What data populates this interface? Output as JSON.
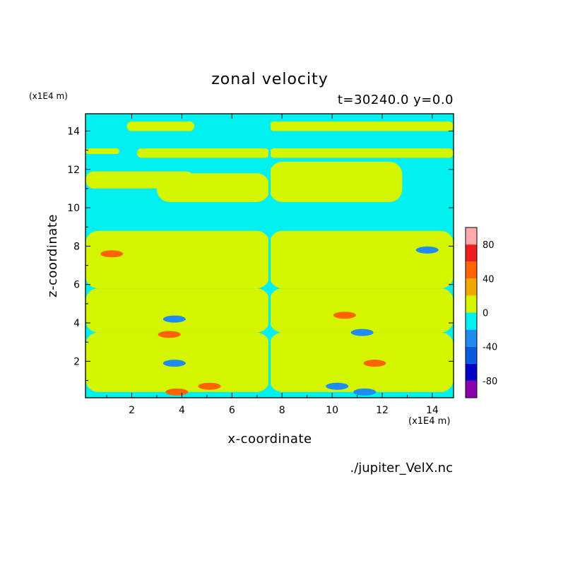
{
  "chart_data": {
    "type": "heatmap",
    "title": "zonal velocity",
    "subtitle": "t=30240.0 y=0.0",
    "xlabel": "x-coordinate",
    "ylabel": "z-coordinate",
    "x_unit": "(x1E4 m)",
    "y_unit": "(x1E4 m)",
    "xlim": [
      0.15,
      14.85
    ],
    "ylim": [
      0.1,
      14.9
    ],
    "xticks": [
      2,
      4,
      6,
      8,
      10,
      12,
      14
    ],
    "yticks": [
      2,
      4,
      6,
      8,
      10,
      12,
      14
    ],
    "colorbar": {
      "levels": [
        -100,
        -80,
        -60,
        -40,
        -20,
        0,
        20,
        40,
        60,
        80,
        100
      ],
      "colors": [
        "#8c00b0",
        "#0000c8",
        "#0a5ae0",
        "#1e8cf0",
        "#00f0f0",
        "#d4f500",
        "#f0a800",
        "#ff6400",
        "#f01e1e",
        "#ffaaaa"
      ],
      "tick_labels": [
        "-80",
        "-40",
        "0",
        "40",
        "80"
      ],
      "tick_values": [
        -80,
        -40,
        0,
        40,
        80
      ]
    },
    "background_band": "#00f0f0",
    "zero_plus_band": "#d4f500",
    "symmetry_axis_x": 7.5,
    "positive_regions": [
      {
        "x": [
          1.8,
          4.5
        ],
        "z": [
          14.0,
          14.5
        ]
      },
      {
        "x": [
          0.15,
          1.5
        ],
        "z": [
          12.8,
          13.1
        ]
      },
      {
        "x": [
          2.2,
          7.5
        ],
        "z": [
          12.6,
          13.1
        ]
      },
      {
        "x": [
          0.15,
          4.5
        ],
        "z": [
          11.0,
          11.9
        ]
      },
      {
        "x": [
          3.0,
          7.5
        ],
        "z": [
          10.3,
          11.8
        ]
      },
      {
        "x": [
          0.15,
          7.5
        ],
        "z": [
          5.8,
          8.8
        ]
      },
      {
        "x": [
          0.15,
          7.5
        ],
        "z": [
          3.5,
          5.8
        ]
      },
      {
        "x": [
          0.15,
          7.5
        ],
        "z": [
          0.4,
          3.5
        ]
      },
      {
        "x": [
          7.5,
          14.85
        ],
        "z": [
          14.0,
          14.5
        ]
      },
      {
        "x": [
          7.5,
          14.85
        ],
        "z": [
          12.6,
          13.1
        ]
      },
      {
        "x": [
          7.5,
          12.8
        ],
        "z": [
          10.3,
          12.4
        ]
      },
      {
        "x": [
          7.5,
          14.85
        ],
        "z": [
          5.8,
          8.8
        ]
      },
      {
        "x": [
          7.5,
          14.85
        ],
        "z": [
          3.5,
          5.8
        ]
      },
      {
        "x": [
          7.5,
          14.85
        ],
        "z": [
          0.4,
          3.5
        ]
      }
    ],
    "extreme_spots": [
      {
        "x": 3.7,
        "z": 4.2,
        "value": -40
      },
      {
        "x": 10.5,
        "z": 4.4,
        "value": 40
      },
      {
        "x": 3.5,
        "z": 3.4,
        "value": 40
      },
      {
        "x": 11.2,
        "z": 3.5,
        "value": -40
      },
      {
        "x": 1.2,
        "z": 7.6,
        "value": 40
      },
      {
        "x": 13.8,
        "z": 7.8,
        "value": -40
      },
      {
        "x": 3.8,
        "z": 0.4,
        "value": 40
      },
      {
        "x": 11.3,
        "z": 0.4,
        "value": -40
      },
      {
        "x": 5.1,
        "z": 0.7,
        "value": 40
      },
      {
        "x": 10.2,
        "z": 0.7,
        "value": -40
      },
      {
        "x": 3.7,
        "z": 1.9,
        "value": -40
      },
      {
        "x": 11.7,
        "z": 1.9,
        "value": 40
      }
    ]
  },
  "labels": {
    "title": "zonal velocity",
    "subtitle": "t=30240.0 y=0.0",
    "y_unit": "(x1E4 m)",
    "x_unit": "(x1E4 m)",
    "xlabel": "x-coordinate",
    "ylabel": "z-coordinate",
    "source_file": "./jupiter_VelX.nc"
  }
}
